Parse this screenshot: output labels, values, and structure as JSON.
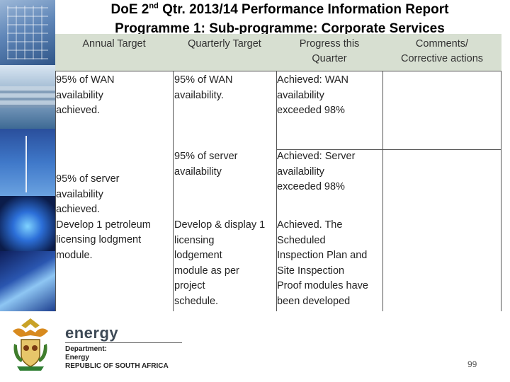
{
  "title": {
    "line1_pre": "DoE 2",
    "line1_sup": "nd",
    "line1_post": " Qtr. 2013/14 Performance Information Report",
    "line2": "Programme 1: Sub-programme: Corporate Services"
  },
  "table": {
    "headers": [
      "Annual Target",
      "Quarterly Target",
      "Progress this\nQuarter",
      "Comments/\nCorrective actions"
    ],
    "row1": {
      "annual": "95% of WAN\navailability\nachieved.",
      "quarterly": "95% of WAN\navailability.",
      "progress_bold": "Achieved",
      "progress_rest": ": WAN\navailability\nexceeded 98%",
      "comments": ""
    },
    "row2": {
      "annual": "95% of server\navailability\nachieved.\nDevelop 1 petroleum\nlicensing lodgment\nmodule.",
      "quarterly_a": "95% of server\navailability",
      "quarterly_b": "Develop & display 1\nlicensing\nlodgement\nmodule as per\nproject\nschedule.",
      "progress_a_bold": "Achieved:",
      "progress_a_rest": " Server\navailability\nexceeded 98%",
      "progress_b_bold": "Achieved",
      "progress_b_rest": ". The\nScheduled\nInspection Plan and\nSite Inspection\nProof modules have\nbeen developed",
      "comments": ""
    }
  },
  "footer": {
    "brand": "energy",
    "dept_line1": "Department:",
    "dept_line2": "Energy",
    "dept_line3": "REPUBLIC OF SOUTH AFRICA",
    "page_number": "99"
  },
  "icons": [
    "coat-of-arms-icon"
  ],
  "colors": {
    "header_bg": "#d7dfd1",
    "border": "#555555"
  }
}
